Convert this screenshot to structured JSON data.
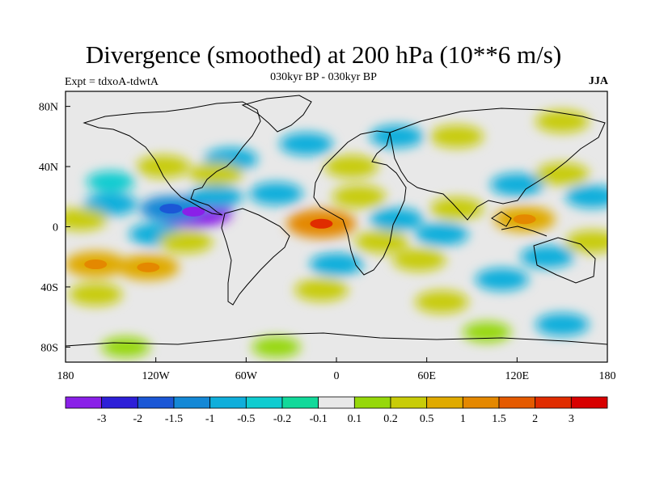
{
  "title": "Divergence (smoothed) at 200 hPa (10**6 m/s)",
  "subtitle": "030kyr BP - 030kyr BP",
  "experiment": "Expt = tdxoA-tdwtA",
  "season": "JJA",
  "map": {
    "lon_range": [
      -180,
      180
    ],
    "lat_range": [
      -90,
      90
    ],
    "background": "#e8e8e8",
    "lon_ticks": [
      "180",
      "120W",
      "60W",
      "0",
      "60E",
      "120E",
      "180"
    ],
    "lat_ticks": [
      "80N",
      "40N",
      "0",
      "40S",
      "80S"
    ]
  },
  "legend": {
    "labels": [
      "-3",
      "-2",
      "-1.5",
      "-1",
      "-0.5",
      "-0.2",
      "-0.1",
      "0.1",
      "0.2",
      "0.5",
      "1",
      "1.5",
      "2",
      "3"
    ],
    "colors": [
      "#8a20e8",
      "#2d1fd8",
      "#1b57d6",
      "#1488d6",
      "#10aedb",
      "#10ccd0",
      "#12d99a",
      "#e8e8e8",
      "#96d80a",
      "#c8cc08",
      "#e0aa00",
      "#e48800",
      "#e45a00",
      "#e02c00",
      "#d80000"
    ]
  },
  "chart_data": {
    "type": "heatmap",
    "variable": "Divergence (smoothed) at 200 hPa",
    "units": "10**6 m/s",
    "anomalies": [
      {
        "lon": -95,
        "lat": 10,
        "value": -3
      },
      {
        "lon": -110,
        "lat": 12,
        "value": -1
      },
      {
        "lon": -150,
        "lat": 15,
        "value": -0.5
      },
      {
        "lon": -80,
        "lat": 20,
        "value": -0.5
      },
      {
        "lon": -40,
        "lat": 22,
        "value": -0.5
      },
      {
        "lon": -70,
        "lat": 45,
        "value": -0.5
      },
      {
        "lon": -20,
        "lat": 55,
        "value": -0.5
      },
      {
        "lon": 40,
        "lat": 60,
        "value": -0.5
      },
      {
        "lon": -120,
        "lat": -5,
        "value": -0.5
      },
      {
        "lon": -150,
        "lat": 30,
        "value": -0.2
      },
      {
        "lon": 0,
        "lat": -25,
        "value": -0.5
      },
      {
        "lon": 40,
        "lat": 5,
        "value": -0.5
      },
      {
        "lon": 70,
        "lat": -5,
        "value": -0.5
      },
      {
        "lon": 120,
        "lat": 28,
        "value": -0.5
      },
      {
        "lon": 140,
        "lat": -20,
        "value": -0.5
      },
      {
        "lon": 110,
        "lat": -35,
        "value": -0.5
      },
      {
        "lon": 170,
        "lat": 20,
        "value": -0.5
      },
      {
        "lon": 150,
        "lat": -65,
        "value": -0.5
      },
      {
        "lon": -160,
        "lat": -25,
        "value": 1
      },
      {
        "lon": -125,
        "lat": -27,
        "value": 1
      },
      {
        "lon": -170,
        "lat": 5,
        "value": 0.5
      },
      {
        "lon": -100,
        "lat": -10,
        "value": 0.5
      },
      {
        "lon": -80,
        "lat": 35,
        "value": 0.5
      },
      {
        "lon": -115,
        "lat": 40,
        "value": 0.5
      },
      {
        "lon": -10,
        "lat": 2,
        "value": 1.5
      },
      {
        "lon": 15,
        "lat": 20,
        "value": 0.5
      },
      {
        "lon": 10,
        "lat": 40,
        "value": 0.5
      },
      {
        "lon": 30,
        "lat": -10,
        "value": 0.5
      },
      {
        "lon": 55,
        "lat": -22,
        "value": 0.5
      },
      {
        "lon": 80,
        "lat": 12,
        "value": 0.5
      },
      {
        "lon": 125,
        "lat": 5,
        "value": 1
      },
      {
        "lon": 150,
        "lat": 35,
        "value": 0.5
      },
      {
        "lon": 170,
        "lat": -10,
        "value": 0.5
      },
      {
        "lon": -10,
        "lat": -42,
        "value": 0.5
      },
      {
        "lon": -160,
        "lat": -45,
        "value": 0.5
      },
      {
        "lon": 70,
        "lat": -50,
        "value": 0.5
      },
      {
        "lon": 150,
        "lat": 70,
        "value": 0.5
      },
      {
        "lon": 80,
        "lat": 60,
        "value": 0.5
      },
      {
        "lon": -40,
        "lat": -80,
        "value": 0.2
      },
      {
        "lon": -140,
        "lat": -80,
        "value": 0.2
      },
      {
        "lon": 100,
        "lat": -70,
        "value": 0.2
      }
    ]
  }
}
